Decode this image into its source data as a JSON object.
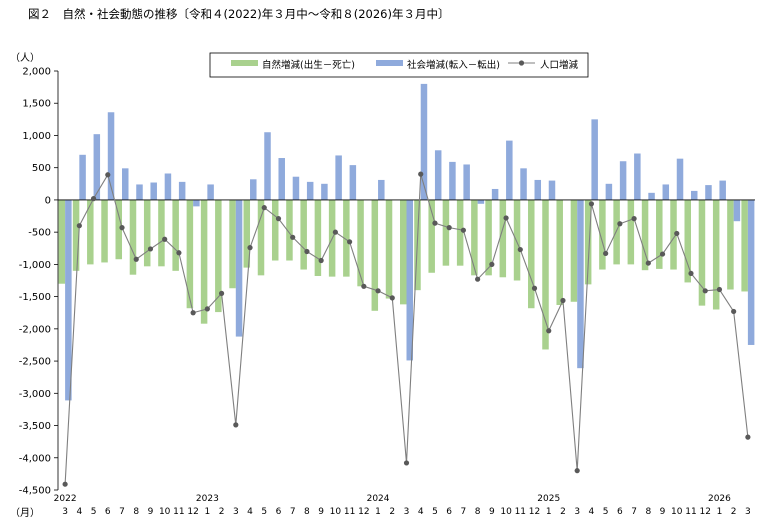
{
  "title": "図２　自然・社会動態の推移〔令和４(2022)年３月中～令和８(2026)年３月中〕",
  "unit_label": "（人）",
  "month_unit_label": "（月）",
  "colors": {
    "natural": "#a9d18e",
    "social": "#8faadc",
    "line": "#7f7f7f",
    "marker": "#595959"
  },
  "chart_data": {
    "type": "bar",
    "title": "図２　自然・社会動態の推移〔令和４(2022)年３月中～令和８(2026)年３月中〕",
    "ylabel": "（人）",
    "xlabel": "（月）",
    "ylim": [
      -4500,
      2000
    ],
    "yticks": [
      2000,
      1500,
      1000,
      500,
      0,
      -500,
      -1000,
      -1500,
      -2000,
      -2500,
      -3000,
      -3500,
      -4000,
      -4500
    ],
    "ytick_labels": [
      "2,000",
      "1,500",
      "1,000",
      "500",
      "0",
      "-500",
      "-1,000",
      "-1,500",
      "-2,000",
      "-2,500",
      "-3,000",
      "-3,500",
      "-4,000",
      "-4,500"
    ],
    "legend_position": "top-center",
    "grid": false,
    "categories": [
      "3",
      "4",
      "5",
      "6",
      "7",
      "8",
      "9",
      "10",
      "11",
      "12",
      "1",
      "2",
      "3",
      "4",
      "5",
      "6",
      "7",
      "8",
      "9",
      "10",
      "11",
      "12",
      "1",
      "2",
      "3",
      "4",
      "5",
      "6",
      "7",
      "8",
      "9",
      "10",
      "11",
      "12",
      "1",
      "2",
      "3",
      "4",
      "5",
      "6",
      "7",
      "8",
      "9",
      "10",
      "11",
      "12",
      "1",
      "2",
      "3"
    ],
    "year_labels": [
      {
        "index": 0,
        "label": "2022"
      },
      {
        "index": 10,
        "label": "2023"
      },
      {
        "index": 22,
        "label": "2024"
      },
      {
        "index": 34,
        "label": "2025"
      },
      {
        "index": 46,
        "label": "2026"
      }
    ],
    "series": [
      {
        "name": "自然増減(出生－死亡)",
        "type": "bar",
        "values": [
          -1300,
          -1100,
          -1000,
          -970,
          -920,
          -1160,
          -1030,
          -1030,
          -1100,
          -1680,
          -1920,
          -1740,
          -1370,
          -1050,
          -1170,
          -940,
          -940,
          -1080,
          -1180,
          -1190,
          -1190,
          -1340,
          -1720,
          -1530,
          -1620,
          -1400,
          -1130,
          -1020,
          -1020,
          -1170,
          -1170,
          -1200,
          -1250,
          -1680,
          -2320,
          -1630,
          -1580,
          -1310,
          -1080,
          -1000,
          -1000,
          -1090,
          -1070,
          -1080,
          -1280,
          -1640,
          -1700,
          -1390,
          -1420
        ]
      },
      {
        "name": "社会増減(転入－転出)",
        "type": "bar",
        "values": [
          -3110,
          700,
          1020,
          1360,
          490,
          240,
          270,
          410,
          280,
          -100,
          240,
          0,
          -2120,
          320,
          1050,
          650,
          360,
          280,
          250,
          690,
          540,
          0,
          310,
          0,
          -2490,
          1800,
          770,
          590,
          550,
          -60,
          170,
          920,
          490,
          310,
          300,
          0,
          -2610,
          1250,
          250,
          600,
          720,
          110,
          240,
          640,
          140,
          230,
          300,
          -330,
          -2250
        ]
      },
      {
        "name": "人口増減",
        "type": "line",
        "values": [
          -4410,
          -400,
          20,
          390,
          -430,
          -920,
          -760,
          -610,
          -820,
          -1750,
          -1690,
          -1450,
          -3490,
          -740,
          -120,
          -290,
          -580,
          -800,
          -940,
          -500,
          -650,
          -1340,
          -1410,
          -1520,
          -4080,
          400,
          -360,
          -430,
          -470,
          -1230,
          -1000,
          -280,
          -770,
          -1370,
          -2030,
          -1560,
          -4200,
          -60,
          -830,
          -370,
          -290,
          -980,
          -840,
          -520,
          -1140,
          -1410,
          -1390,
          -1730,
          -3680
        ]
      }
    ]
  }
}
